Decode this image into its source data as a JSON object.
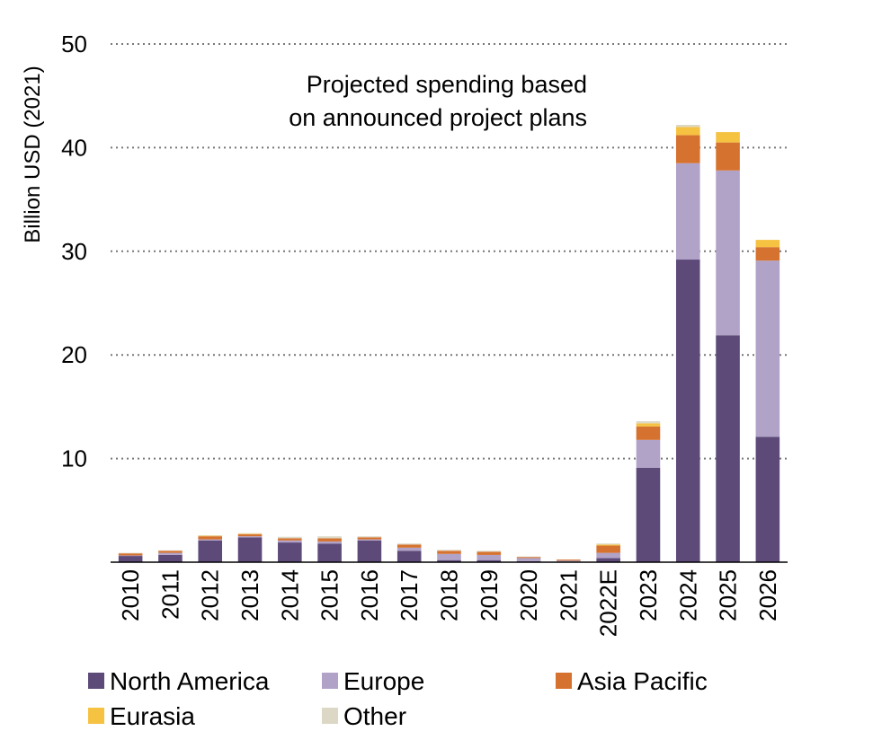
{
  "chart_data": {
    "type": "bar",
    "stacked": true,
    "title": "",
    "xlabel": "",
    "ylabel": "Billion USD (2021)",
    "ylim": [
      0,
      50
    ],
    "yticks": [
      10,
      20,
      30,
      40,
      50
    ],
    "grid": true,
    "annotation": [
      "Projected spending based",
      "on announced project plans"
    ],
    "legend_position": "bottom",
    "categories": [
      "2010",
      "2011",
      "2012",
      "2013",
      "2014",
      "2015",
      "2016",
      "2017",
      "2018",
      "2019",
      "2020",
      "2021",
      "2022E",
      "2023",
      "2024",
      "2025",
      "2026"
    ],
    "series": [
      {
        "name": "North America",
        "color": "#5d4a79",
        "values": [
          0.6,
          0.7,
          2.1,
          2.4,
          1.9,
          1.8,
          2.1,
          1.1,
          0.2,
          0.2,
          0.1,
          0.05,
          0.4,
          9.1,
          29.2,
          21.9,
          12.1
        ]
      },
      {
        "name": "Europe",
        "color": "#b1a2c7",
        "values": [
          0.05,
          0.2,
          0.1,
          0.1,
          0.2,
          0.2,
          0.1,
          0.3,
          0.6,
          0.5,
          0.3,
          0.1,
          0.5,
          2.7,
          9.3,
          15.9,
          17.0
        ]
      },
      {
        "name": "Asia Pacific",
        "color": "#d6722f",
        "values": [
          0.2,
          0.2,
          0.3,
          0.2,
          0.2,
          0.3,
          0.2,
          0.3,
          0.3,
          0.3,
          0.1,
          0.1,
          0.7,
          1.3,
          2.7,
          2.7,
          1.3
        ]
      },
      {
        "name": "Eurasia",
        "color": "#f5c242",
        "values": [
          0.0,
          0.0,
          0.05,
          0.05,
          0.0,
          0.0,
          0.0,
          0.0,
          0.0,
          0.0,
          0.0,
          0.0,
          0.1,
          0.3,
          0.8,
          1.0,
          0.7
        ]
      },
      {
        "name": "Other",
        "color": "#ddd8c6",
        "values": [
          0.05,
          0.05,
          0.05,
          0.05,
          0.15,
          0.2,
          0.1,
          0.1,
          0.1,
          0.1,
          0.05,
          0.0,
          0.1,
          0.2,
          0.2,
          0.0,
          0.0
        ]
      }
    ]
  }
}
